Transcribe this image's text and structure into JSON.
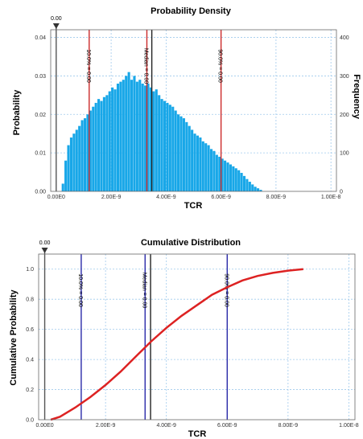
{
  "chart_data": [
    {
      "type": "bar",
      "title": "Probability Density",
      "xlabel": "TCR",
      "ylabel": "Probability",
      "y2label": "Frequency",
      "xlim": [
        -2e-10,
        1.02e-08
      ],
      "ylim": [
        0,
        0.042
      ],
      "y2lim": [
        0,
        420
      ],
      "x_ticks": [
        "0.00E0",
        "2.00E-9",
        "4.00E-9",
        "6.00E-9",
        "8.00E-9",
        "1.00E-8"
      ],
      "x_tick_values": [
        0,
        2e-09,
        4e-09,
        6e-09,
        8e-09,
        1e-08
      ],
      "y_ticks": [
        "0.00",
        "0.01",
        "0.02",
        "0.03",
        "0.04"
      ],
      "y_tick_values": [
        0,
        0.01,
        0.02,
        0.03,
        0.04
      ],
      "y2_ticks": [
        "0",
        "100",
        "200",
        "300",
        "400"
      ],
      "y2_tick_values": [
        0,
        100,
        200,
        300,
        400
      ],
      "grid": true,
      "bar_color": "#18a7e8",
      "bin_width": 1e-10,
      "bin_start": 2e-10,
      "values": [
        0.002,
        0.008,
        0.012,
        0.014,
        0.015,
        0.016,
        0.017,
        0.0185,
        0.019,
        0.02,
        0.021,
        0.022,
        0.023,
        0.024,
        0.0235,
        0.0245,
        0.025,
        0.026,
        0.027,
        0.0265,
        0.028,
        0.0285,
        0.029,
        0.03,
        0.031,
        0.029,
        0.03,
        0.0285,
        0.029,
        0.028,
        0.0275,
        0.028,
        0.027,
        0.026,
        0.0265,
        0.025,
        0.024,
        0.0235,
        0.023,
        0.0225,
        0.022,
        0.021,
        0.02,
        0.0195,
        0.019,
        0.018,
        0.017,
        0.016,
        0.015,
        0.0145,
        0.014,
        0.013,
        0.0125,
        0.012,
        0.011,
        0.0105,
        0.0095,
        0.009,
        0.0085,
        0.008,
        0.0075,
        0.007,
        0.0065,
        0.006,
        0.0055,
        0.0048,
        0.004,
        0.0032,
        0.0025,
        0.0018,
        0.0012,
        0.0008,
        0.0004
      ],
      "markers": [
        {
          "label": "0.00",
          "value": 0,
          "color": "#555555",
          "top": true
        },
        {
          "label": "10.0% = 0.00",
          "value": 1.2e-09,
          "color": "#cc2a2a"
        },
        {
          "label": "Median = 0.00",
          "value": 3.3e-09,
          "color": "#cc2a2a"
        },
        {
          "label": "",
          "value": 3.48e-09,
          "color": "#222222"
        },
        {
          "label": "90.0% = 0.00",
          "value": 6e-09,
          "color": "#cc2a2a"
        }
      ]
    },
    {
      "type": "line",
      "title": "Cumulative Distribution",
      "xlabel": "TCR",
      "ylabel": "Cumulative Probability",
      "xlim": [
        -2e-10,
        1.02e-08
      ],
      "ylim": [
        0,
        1.1
      ],
      "x_ticks": [
        "0.00E0",
        "2.00E-9",
        "4.00E-9",
        "6.00E-9",
        "8.00E-9",
        "1.00E-8"
      ],
      "x_tick_values": [
        0,
        2e-09,
        4e-09,
        6e-09,
        8e-09,
        1e-08
      ],
      "y_ticks": [
        "0.0",
        "0.2",
        "0.4",
        "0.6",
        "0.8",
        "1.0"
      ],
      "y_tick_values": [
        0,
        0.2,
        0.4,
        0.6,
        0.8,
        1.0
      ],
      "grid": true,
      "line_color": "#dd2222",
      "series": [
        {
          "x": [
            2e-10,
            5e-10,
            1e-09,
            1.5e-09,
            2e-09,
            2.5e-09,
            3e-09,
            3.5e-09,
            4e-09,
            4.5e-09,
            5e-09,
            5.5e-09,
            6e-09,
            6.5e-09,
            7e-09,
            7.5e-09,
            8e-09,
            8.5e-09
          ],
          "y": [
            0.0,
            0.02,
            0.08,
            0.15,
            0.23,
            0.32,
            0.42,
            0.52,
            0.61,
            0.69,
            0.76,
            0.83,
            0.88,
            0.925,
            0.955,
            0.975,
            0.99,
            1.0
          ]
        }
      ],
      "markers": [
        {
          "label": "0.00",
          "value": 0,
          "color": "#555555",
          "top": true
        },
        {
          "label": "10.0% = 0.00",
          "value": 1.2e-09,
          "color": "#2a2aa8"
        },
        {
          "label": "Median = 0.00",
          "value": 3.3e-09,
          "color": "#2a2aa8"
        },
        {
          "label": "",
          "value": 3.48e-09,
          "color": "#222222"
        },
        {
          "label": "90.0% = 0.00",
          "value": 6e-09,
          "color": "#2a2aa8"
        }
      ]
    }
  ]
}
